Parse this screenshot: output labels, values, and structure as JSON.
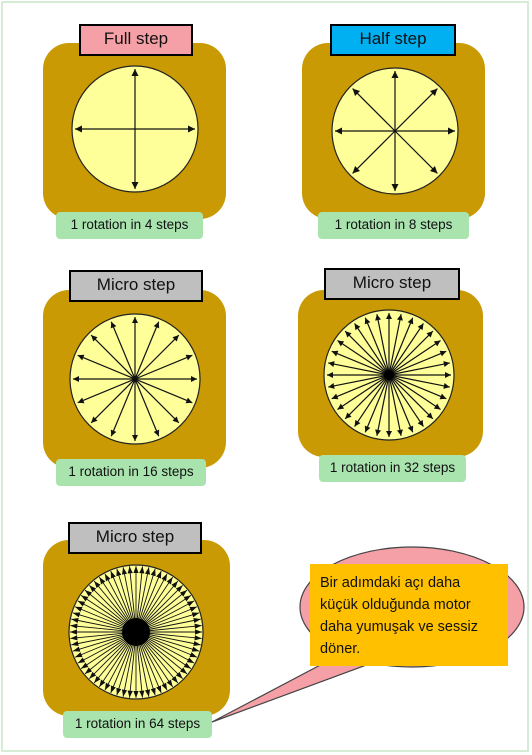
{
  "panels": [
    {
      "title": "Full step",
      "caption": "1 rotation in 4 steps",
      "steps": 4,
      "style": "arrows"
    },
    {
      "title": "Half step",
      "caption": "1 rotation in 8 steps",
      "steps": 8,
      "style": "arrows"
    },
    {
      "title": "Micro step",
      "caption": "1 rotation in 16 steps",
      "steps": 16,
      "style": "arrows"
    },
    {
      "title": "Micro step",
      "caption": "1 rotation in 32 steps",
      "steps": 32,
      "style": "arrows"
    },
    {
      "title": "Micro step",
      "caption": "1 rotation in 64 steps",
      "steps": 64,
      "style": "dense"
    }
  ],
  "note": {
    "text": "Bir adımdaki açı daha küçük olduğunda motor daha yumuşak ve sessiz döner."
  },
  "colors": {
    "plate": "#c99a04",
    "disc": "#ffff99",
    "full_title": "#f4a0a6",
    "half_title": "#00b0f0",
    "micro_title": "#bfbfbf",
    "caption": "#a9e3ae",
    "note": "#ffc000",
    "bubble": "#f4a0a6"
  }
}
